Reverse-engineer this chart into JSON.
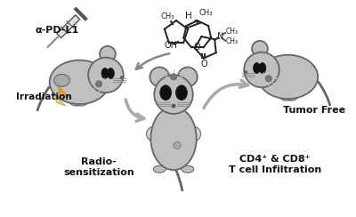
{
  "bg_color": "#ffffff",
  "mouse_gray": "#c0c0c0",
  "mouse_light": "#d8d8d8",
  "mouse_outline": "#666666",
  "arrow_color": "#aaaaaa",
  "text_color": "#111111",
  "orange_color": "#f5a000",
  "labels": {
    "alpha_pdl1": "α-PD-L1",
    "irradiation": "Irradiation",
    "radio_sensitization": "Radio-\nsensitization",
    "tumor_free": "Tumor Free",
    "cd4_cd8": "CD4⁺ & CD8⁺\nT cell Infiltration"
  },
  "figsize": [
    4.0,
    2.44
  ],
  "dpi": 100
}
